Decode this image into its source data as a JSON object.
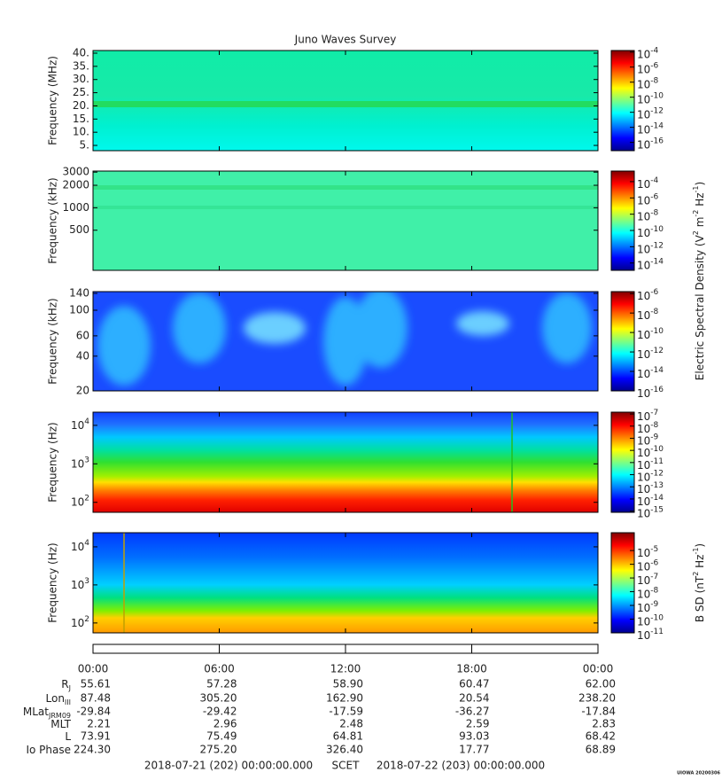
{
  "title": "Juno Waves Survey",
  "panels": [
    {
      "ylabel": "Frequency (MHz)",
      "scale": "linear",
      "ylim": [
        3,
        41
      ],
      "yticks": [
        {
          "value": 40,
          "label": "40."
        },
        {
          "value": 35,
          "label": "35."
        },
        {
          "value": 30,
          "label": "30."
        },
        {
          "value": 25,
          "label": "25."
        },
        {
          "value": 20,
          "label": "20."
        },
        {
          "value": 15,
          "label": "15."
        },
        {
          "value": 10,
          "label": "10."
        },
        {
          "value": 5,
          "label": "5."
        }
      ],
      "clim": [
        -17.1,
        -3.8
      ],
      "cticks": [
        {
          "value": -4,
          "base": "10",
          "exp": "-4"
        },
        {
          "value": -6,
          "base": "10",
          "exp": "-6"
        },
        {
          "value": -8,
          "base": "10",
          "exp": "-8"
        },
        {
          "value": -10,
          "base": "10",
          "exp": "-10"
        },
        {
          "value": -12,
          "base": "10",
          "exp": "-12"
        },
        {
          "value": -14,
          "base": "10",
          "exp": "-14"
        },
        {
          "value": -16,
          "base": "10",
          "exp": "-16"
        }
      ]
    },
    {
      "ylabel": "Frequency (kHz)",
      "scale": "log",
      "ylim": [
        145,
        3100
      ],
      "yticks": [
        3000,
        2000,
        1000,
        500
      ],
      "clim": [
        -14.9,
        -2.7
      ],
      "cticks": [
        {
          "value": -4,
          "base": "10",
          "exp": "-4"
        },
        {
          "value": -6,
          "base": "10",
          "exp": "-6"
        },
        {
          "value": -8,
          "base": "10",
          "exp": "-8"
        },
        {
          "value": -10,
          "base": "10",
          "exp": "-10"
        },
        {
          "value": -12,
          "base": "10",
          "exp": "-12"
        },
        {
          "value": -14,
          "base": "10",
          "exp": "-14"
        }
      ]
    },
    {
      "ylabel": "Frequency (kHz)",
      "scale": "log",
      "ylim": [
        20,
        145
      ],
      "yticks": [
        140,
        100,
        60,
        40,
        20
      ],
      "clim": [
        -16,
        -5.8
      ],
      "cticks": [
        {
          "value": -6,
          "base": "10",
          "exp": "-6"
        },
        {
          "value": -8,
          "base": "10",
          "exp": "-8"
        },
        {
          "value": -10,
          "base": "10",
          "exp": "-10"
        },
        {
          "value": -12,
          "base": "10",
          "exp": "-12"
        },
        {
          "value": -14,
          "base": "10",
          "exp": "-14"
        },
        {
          "value": -16,
          "base": "10",
          "exp": "-16"
        }
      ]
    },
    {
      "ylabel": "Frequency (Hz)",
      "scale": "log",
      "ylim": [
        55,
        22000
      ],
      "yticks": [
        {
          "value": 10000,
          "base": "10",
          "exp": "4"
        },
        {
          "value": 1000,
          "base": "10",
          "exp": "3"
        },
        {
          "value": 100,
          "base": "10",
          "exp": "2"
        }
      ],
      "clim": [
        -15.1,
        -6.85
      ],
      "cticks": [
        {
          "value": -7,
          "base": "10",
          "exp": "-7"
        },
        {
          "value": -8,
          "base": "10",
          "exp": "-8"
        },
        {
          "value": -9,
          "base": "10",
          "exp": "-9"
        },
        {
          "value": -10,
          "base": "10",
          "exp": "-10"
        },
        {
          "value": -11,
          "base": "10",
          "exp": "-11"
        },
        {
          "value": -12,
          "base": "10",
          "exp": "-12"
        },
        {
          "value": -13,
          "base": "10",
          "exp": "-13"
        },
        {
          "value": -14,
          "base": "10",
          "exp": "-14"
        },
        {
          "value": -15,
          "base": "10",
          "exp": "-15"
        }
      ]
    },
    {
      "ylabel": "Frequency (Hz)",
      "scale": "log",
      "ylim": [
        55,
        23500
      ],
      "yticks": [
        {
          "value": 10000,
          "base": "10",
          "exp": "4"
        },
        {
          "value": 1000,
          "base": "10",
          "exp": "3"
        },
        {
          "value": 100,
          "base": "10",
          "exp": "2"
        }
      ],
      "clim": [
        -11,
        -3.7
      ],
      "cticks": [
        {
          "value": -5,
          "base": "10",
          "exp": "-5"
        },
        {
          "value": -6,
          "base": "10",
          "exp": "-6"
        },
        {
          "value": -7,
          "base": "10",
          "exp": "-7"
        },
        {
          "value": -8,
          "base": "10",
          "exp": "-8"
        },
        {
          "value": -9,
          "base": "10",
          "exp": "-9"
        },
        {
          "value": -10,
          "base": "10",
          "exp": "-10"
        },
        {
          "value": -11,
          "base": "10",
          "exp": "-11"
        }
      ]
    }
  ],
  "electric_label": [
    {
      "text": "Electric Spectral Density (V"
    },
    {
      "sup": "2"
    },
    {
      "text": " m"
    },
    {
      "sup": "-2"
    },
    {
      "text": " Hz"
    },
    {
      "sup": "-1"
    },
    {
      "text": ")"
    }
  ],
  "magnetic_label": [
    {
      "text": "B SD (nT"
    },
    {
      "sup": "2"
    },
    {
      "text": " Hz"
    },
    {
      "sup": "-1"
    },
    {
      "text": ")"
    }
  ],
  "xaxis": {
    "xlim": [
      0,
      24
    ],
    "xticks": [
      {
        "value": 0,
        "label": "00:00"
      },
      {
        "value": 6,
        "label": "06:00"
      },
      {
        "value": 12,
        "label": "12:00"
      },
      {
        "value": 18,
        "label": "18:00"
      },
      {
        "value": 24,
        "label": "00:00"
      }
    ]
  },
  "ephemeris": [
    {
      "label": [
        {
          "text": "R"
        },
        {
          "sub": "J"
        }
      ],
      "values": [
        "55.61",
        "57.28",
        "58.90",
        "60.47",
        "62.00"
      ]
    },
    {
      "label": [
        {
          "text": "Lon"
        },
        {
          "sub": "III"
        }
      ],
      "values": [
        "87.48",
        "305.20",
        "162.90",
        "20.54",
        "238.20"
      ]
    },
    {
      "label": [
        {
          "text": "MLat"
        },
        {
          "sub": "JRM09"
        }
      ],
      "values": [
        "-29.84",
        "-29.42",
        "-17.59",
        "-36.27",
        "-17.84"
      ]
    },
    {
      "label": [
        {
          "text": "MLT"
        }
      ],
      "values": [
        "2.21",
        "2.96",
        "2.48",
        "2.59",
        "2.83"
      ]
    },
    {
      "label": [
        {
          "text": "L"
        }
      ],
      "values": [
        "73.91",
        "75.49",
        "64.81",
        "93.03",
        "68.42"
      ]
    },
    {
      "label": [
        {
          "text": "Io Phase"
        }
      ],
      "values": [
        "224.30",
        "275.20",
        "326.40",
        "17.77",
        "68.89"
      ]
    }
  ],
  "scet_start": "2018-07-21 (202) 00:00:00.000",
  "scet_label": "SCET",
  "scet_end": "2018-07-22 (203) 00:00:00.000",
  "stamp": "UIOWA 20200306"
}
